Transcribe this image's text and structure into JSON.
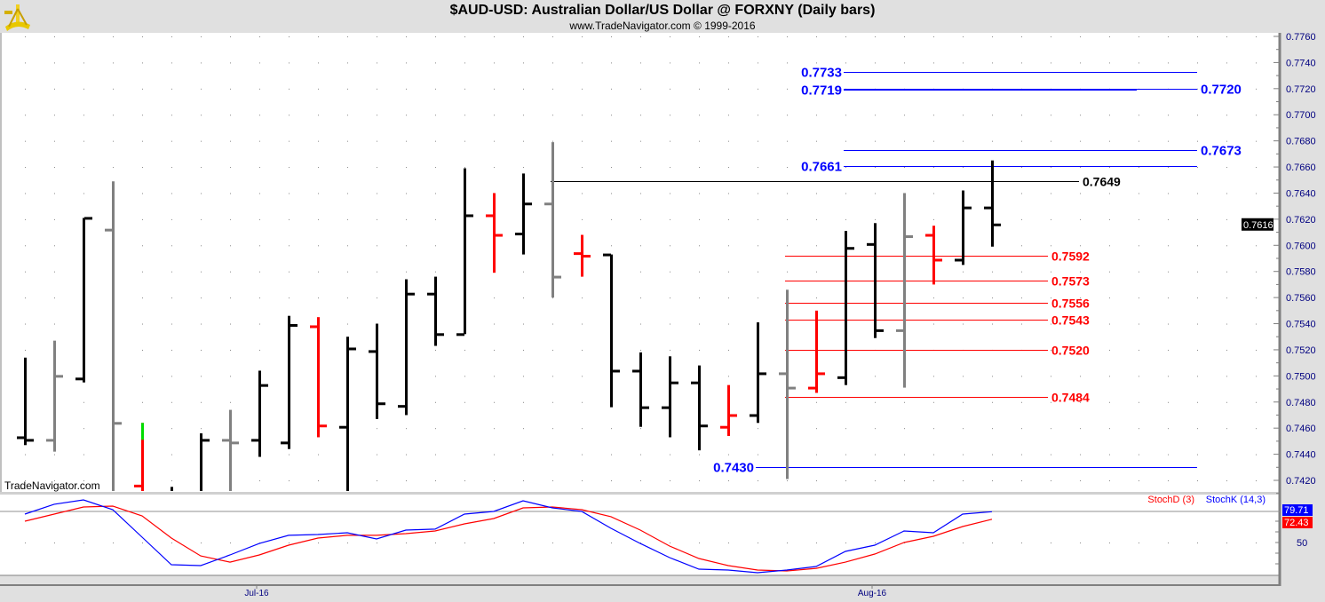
{
  "header": {
    "title": "$AUD-USD:  Australian Dollar/US Dollar @ FORXNY  (Daily bars)",
    "subtitle": "www.TradeNavigator.com © 1999-2016",
    "watermark": "TradeNavigator.com"
  },
  "chart_data": [
    {
      "type": "ohlc",
      "title": "$AUD-USD:  Australian Dollar/US Dollar @ FORXNY  (Daily bars)",
      "ylim": [
        0.741,
        0.776
      ],
      "y_ticks": [
        "0.7760",
        "0.7740",
        "0.7720",
        "0.7700",
        "0.7680",
        "0.7660",
        "0.7640",
        "0.7620",
        "0.7600",
        "0.7580",
        "0.7560",
        "0.7540",
        "0.7520",
        "0.7500",
        "0.7480",
        "0.7460",
        "0.7440",
        "0.7420"
      ],
      "x_labels": [
        {
          "label": "Jul-16",
          "bar": 8
        },
        {
          "label": "Aug-16",
          "bar": 29
        }
      ],
      "last_price": "0.7616",
      "grid": true,
      "colors": {
        "up": "#000000",
        "gray": "#808080",
        "red": "#ff0000",
        "green": "#00dd00"
      },
      "bars": [
        {
          "o": 0.7453,
          "h": 0.7514,
          "l": 0.7447,
          "c": 0.7451,
          "color": "#000000"
        },
        {
          "o": 0.7451,
          "h": 0.7527,
          "l": 0.7442,
          "c": 0.75,
          "color": "#808080"
        },
        {
          "o": 0.7498,
          "h": 0.7621,
          "l": 0.7495,
          "c": 0.7621,
          "color": "#000000"
        },
        {
          "o": 0.7612,
          "h": 0.7649,
          "l": 0.74,
          "c": 0.7464,
          "color": "#808080"
        },
        {
          "o": 0.7416,
          "h": 0.7464,
          "l": 0.74,
          "c": 0.741,
          "color": "#ff0000"
        },
        {
          "o": 0.741,
          "h": 0.7415,
          "l": 0.74,
          "c": 0.741,
          "color": "#000000"
        },
        {
          "o": 0.74,
          "h": 0.7456,
          "l": 0.7395,
          "c": 0.7451,
          "color": "#000000"
        },
        {
          "o": 0.7451,
          "h": 0.7474,
          "l": 0.7395,
          "c": 0.7449,
          "color": "#808080"
        },
        {
          "o": 0.7451,
          "h": 0.7504,
          "l": 0.7438,
          "c": 0.7493,
          "color": "#000000"
        },
        {
          "o": 0.7449,
          "h": 0.7546,
          "l": 0.7444,
          "c": 0.7539,
          "color": "#000000"
        },
        {
          "o": 0.7538,
          "h": 0.7545,
          "l": 0.7453,
          "c": 0.7462,
          "color": "#ff0000"
        },
        {
          "o": 0.7461,
          "h": 0.753,
          "l": 0.74,
          "c": 0.7521,
          "color": "#000000"
        },
        {
          "o": 0.7519,
          "h": 0.754,
          "l": 0.7467,
          "c": 0.7479,
          "color": "#000000"
        },
        {
          "o": 0.7477,
          "h": 0.7574,
          "l": 0.747,
          "c": 0.7563,
          "color": "#000000"
        },
        {
          "o": 0.7563,
          "h": 0.7576,
          "l": 0.7523,
          "c": 0.7532,
          "color": "#000000"
        },
        {
          "o": 0.7532,
          "h": 0.7659,
          "l": 0.7532,
          "c": 0.7623,
          "color": "#000000"
        },
        {
          "o": 0.7623,
          "h": 0.764,
          "l": 0.7579,
          "c": 0.7608,
          "color": "#ff0000"
        },
        {
          "o": 0.7609,
          "h": 0.7655,
          "l": 0.7593,
          "c": 0.7632,
          "color": "#000000"
        },
        {
          "o": 0.7632,
          "h": 0.7679,
          "l": 0.756,
          "c": 0.7576,
          "color": "#808080"
        },
        {
          "o": 0.7594,
          "h": 0.7608,
          "l": 0.7576,
          "c": 0.7592,
          "color": "#ff0000"
        },
        {
          "o": 0.7593,
          "h": 0.7593,
          "l": 0.7476,
          "c": 0.7504,
          "color": "#000000"
        },
        {
          "o": 0.7504,
          "h": 0.7518,
          "l": 0.7461,
          "c": 0.7476,
          "color": "#000000"
        },
        {
          "o": 0.7476,
          "h": 0.7515,
          "l": 0.7453,
          "c": 0.7495,
          "color": "#000000"
        },
        {
          "o": 0.7495,
          "h": 0.7508,
          "l": 0.7443,
          "c": 0.7462,
          "color": "#000000"
        },
        {
          "o": 0.7461,
          "h": 0.7493,
          "l": 0.7454,
          "c": 0.747,
          "color": "#ff0000"
        },
        {
          "o": 0.747,
          "h": 0.7541,
          "l": 0.7464,
          "c": 0.7502,
          "color": "#000000"
        },
        {
          "o": 0.7502,
          "h": 0.7566,
          "l": 0.7421,
          "c": 0.7491,
          "color": "#808080"
        },
        {
          "o": 0.7491,
          "h": 0.755,
          "l": 0.7487,
          "c": 0.7502,
          "color": "#ff0000"
        },
        {
          "o": 0.7499,
          "h": 0.7611,
          "l": 0.7493,
          "c": 0.7598,
          "color": "#000000"
        },
        {
          "o": 0.7601,
          "h": 0.7617,
          "l": 0.7529,
          "c": 0.7535,
          "color": "#000000"
        },
        {
          "o": 0.7535,
          "h": 0.764,
          "l": 0.7491,
          "c": 0.7607,
          "color": "#808080"
        },
        {
          "o": 0.7608,
          "h": 0.7615,
          "l": 0.757,
          "c": 0.7589,
          "color": "#ff0000"
        },
        {
          "o": 0.7589,
          "h": 0.7642,
          "l": 0.7585,
          "c": 0.7629,
          "color": "#000000"
        },
        {
          "o": 0.7629,
          "h": 0.7665,
          "l": 0.7599,
          "c": 0.7616,
          "color": "#000000"
        }
      ],
      "levels": [
        {
          "value": 0.7733,
          "label": "0.7733",
          "color": "#0000ff",
          "side": "left",
          "from_bar": 28,
          "group": "blue"
        },
        {
          "value": 0.7719,
          "label": "0.7719",
          "color": "#0000ff",
          "side": "left",
          "from_bar": 28,
          "group": "blue-short"
        },
        {
          "value": 0.772,
          "label": "0.7720",
          "color": "#0000ff",
          "side": "right",
          "from_bar": 28,
          "group": "blue-long"
        },
        {
          "value": 0.7673,
          "label": "0.7673",
          "color": "#0000ff",
          "side": "right",
          "from_bar": 28,
          "group": "blue"
        },
        {
          "value": 0.7661,
          "label": "0.7661",
          "color": "#0000ff",
          "side": "left",
          "from_bar": 28,
          "group": "blue"
        },
        {
          "value": 0.7649,
          "label": "0.7649",
          "color": "#000000",
          "side": "right",
          "from_bar": 18,
          "group": "black"
        },
        {
          "value": 0.7592,
          "label": "0.7592",
          "color": "#ff0000",
          "side": "right",
          "from_bar": 26,
          "group": "red"
        },
        {
          "value": 0.7573,
          "label": "0.7573",
          "color": "#ff0000",
          "side": "right",
          "from_bar": 26,
          "group": "red"
        },
        {
          "value": 0.7556,
          "label": "0.7556",
          "color": "#ff0000",
          "side": "right",
          "from_bar": 26,
          "group": "red"
        },
        {
          "value": 0.7543,
          "label": "0.7543",
          "color": "#ff0000",
          "side": "right",
          "from_bar": 26,
          "group": "red"
        },
        {
          "value": 0.752,
          "label": "0.7520",
          "color": "#ff0000",
          "side": "right",
          "from_bar": 26,
          "group": "red"
        },
        {
          "value": 0.7484,
          "label": "0.7484",
          "color": "#ff0000",
          "side": "right",
          "from_bar": 26,
          "group": "red"
        },
        {
          "value": 0.743,
          "label": "0.7430",
          "color": "#0000ff",
          "side": "left",
          "from_bar": 25,
          "group": "blue"
        }
      ]
    },
    {
      "type": "line",
      "title": "Stochastic",
      "ylim": [
        0,
        100
      ],
      "y_ticks": [
        "50"
      ],
      "reference_line": 80,
      "series": [
        {
          "name": "StochD (3)",
          "color": "#ff0000",
          "last": "72.43",
          "values": [
            70.6,
            77.4,
            84.3,
            85.1,
            75.7,
            54.3,
            37.1,
            31.1,
            38.0,
            47.4,
            54.3,
            56.9,
            56.9,
            58.6,
            61.1,
            68.0,
            73.1,
            83.4,
            84.3,
            81.7,
            74.9,
            62.0,
            46.6,
            34.6,
            27.7,
            23.4,
            22.6,
            25.1,
            31.1,
            38.9,
            50.0,
            56.0,
            65.4,
            72.43
          ]
        },
        {
          "name": "StochK (14,3)",
          "color": "#0000ff",
          "last": "79.71",
          "values": [
            77.4,
            86.9,
            91.1,
            81.7,
            55.1,
            28.6,
            27.7,
            38.0,
            49.1,
            56.9,
            57.7,
            59.4,
            53.4,
            62.0,
            62.9,
            77.4,
            80.0,
            90.3,
            83.4,
            80.0,
            63.7,
            49.1,
            35.4,
            24.3,
            23.4,
            20.9,
            23.4,
            26.9,
            41.4,
            47.4,
            61.1,
            59.4,
            77.4,
            79.71
          ]
        }
      ]
    }
  ]
}
